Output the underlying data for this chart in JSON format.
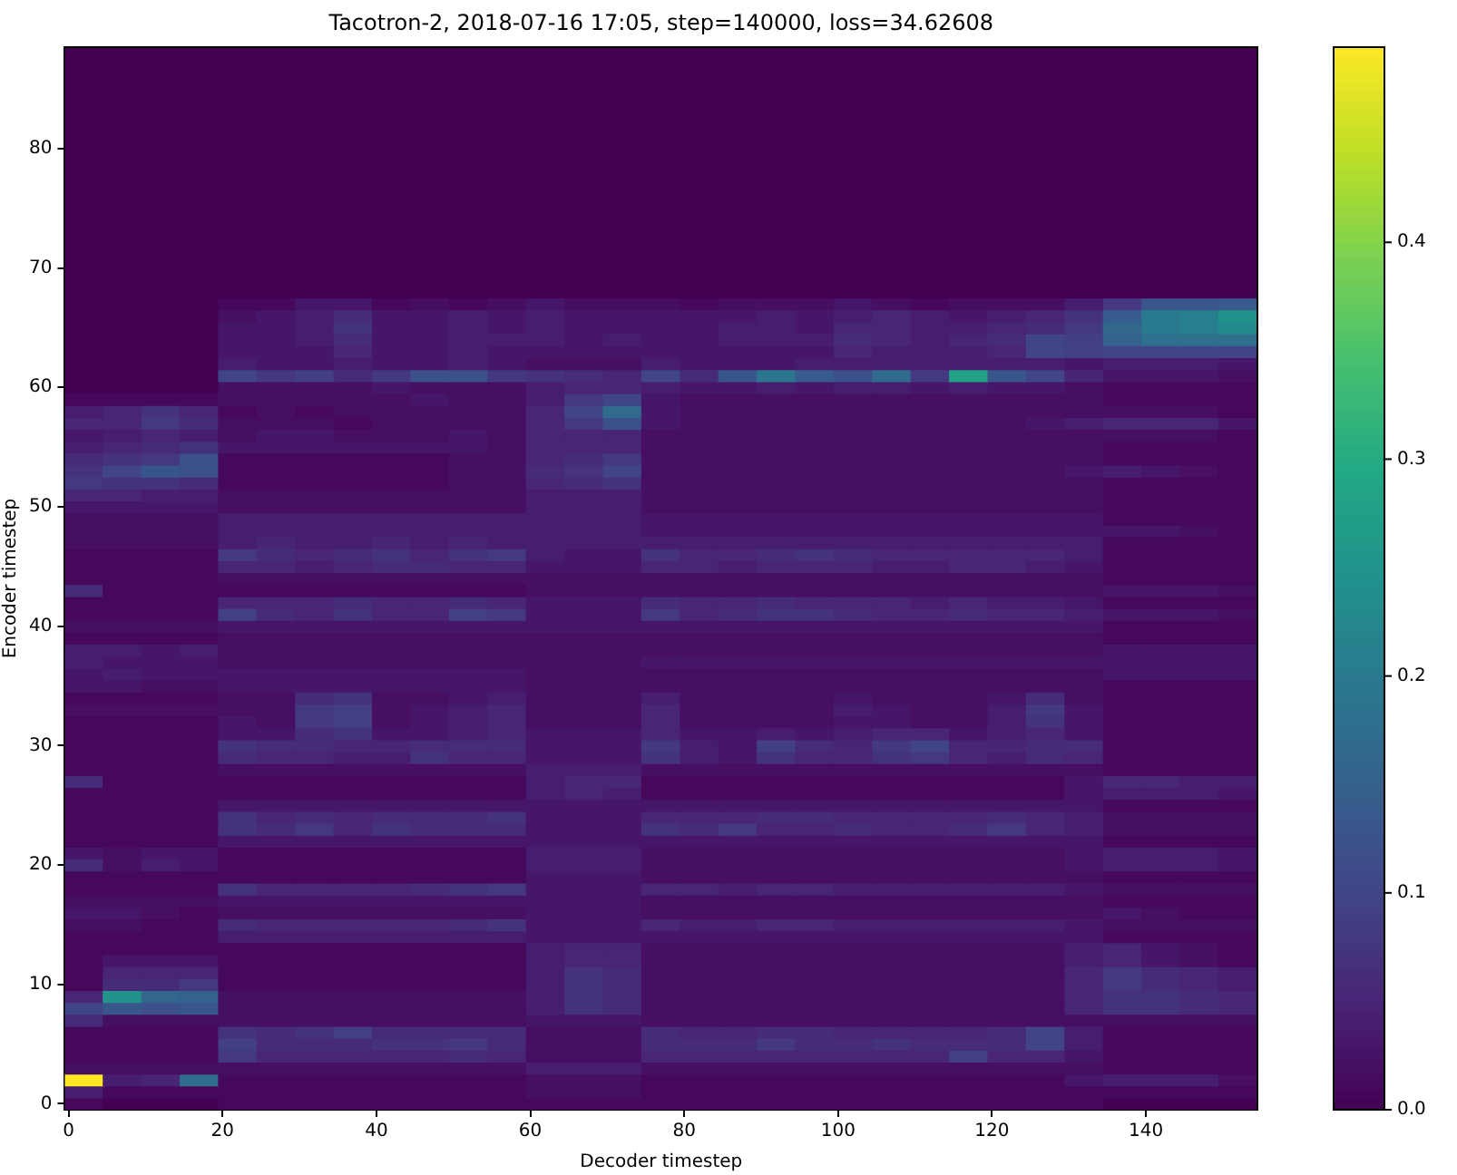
{
  "chart_data": {
    "type": "heatmap",
    "title": "Tacotron-2, 2018-07-16 17:05, step=140000, loss=34.62608",
    "xlabel": "Decoder timestep",
    "ylabel": "Encoder timestep",
    "x": [
      2,
      7,
      12,
      17,
      22,
      27,
      32,
      37,
      42,
      47,
      52,
      57,
      62,
      67,
      72,
      77,
      82,
      87,
      92,
      97,
      102,
      107,
      112,
      117,
      122,
      127,
      132,
      137,
      142,
      147,
      152
    ],
    "xlim": [
      -0.5,
      154.5
    ],
    "xticks": [
      0,
      20,
      40,
      60,
      80,
      100,
      120,
      140
    ],
    "y_categories": [
      null,
      null,
      null,
      null,
      null,
      null,
      null,
      null,
      "80",
      null,
      null,
      null,
      null,
      null,
      null,
      null,
      null,
      null,
      "70",
      null,
      null,
      null,
      null,
      null,
      null,
      null,
      null,
      null,
      "60",
      null,
      null,
      null,
      null,
      null,
      null,
      null,
      null,
      null,
      "50",
      null,
      null,
      null,
      null,
      null,
      null,
      null,
      null,
      null,
      "40",
      null,
      null,
      null,
      null,
      null,
      null,
      null,
      null,
      null,
      "30",
      null,
      null,
      null,
      null,
      null,
      null,
      null,
      null,
      null,
      "20",
      null,
      null,
      null,
      null,
      null,
      null,
      null,
      null,
      null,
      "10",
      null,
      null,
      null,
      null,
      null,
      null,
      null,
      null,
      null,
      "0"
    ],
    "clim": [
      0,
      0.49
    ],
    "cticks": [
      {
        "value": 0,
        "label": "0.0"
      },
      0.1,
      0.2,
      0.3,
      0.4
    ],
    "cells": [
      [
        0,
        0,
        0,
        0,
        0,
        0,
        0,
        0,
        0,
        0,
        0,
        0,
        0,
        0,
        0,
        0,
        0,
        0,
        0,
        0,
        0,
        0,
        0,
        0,
        0,
        0,
        0,
        0,
        0,
        0,
        0
      ],
      [
        0,
        0,
        0,
        0,
        0,
        0,
        0,
        0,
        0,
        0,
        0,
        0,
        0,
        0,
        0,
        0,
        0,
        0,
        0,
        0,
        0,
        0,
        0,
        0,
        0,
        0,
        0,
        0,
        0,
        0,
        0
      ],
      [
        0,
        0,
        0,
        0,
        0,
        0,
        0,
        0,
        0,
        0,
        0,
        0,
        0,
        0,
        0,
        0,
        0,
        0,
        0,
        0,
        0,
        0,
        0,
        0,
        0,
        0,
        0,
        0,
        0,
        0,
        0
      ],
      [
        0,
        0,
        0,
        0,
        0,
        0,
        0,
        0,
        0,
        0,
        0,
        0,
        0,
        0,
        0,
        0,
        0,
        0,
        0,
        0,
        0,
        0,
        0,
        0,
        0,
        0,
        0,
        0,
        0,
        0,
        0
      ],
      [
        0,
        0,
        0,
        0,
        0,
        0,
        0,
        0,
        0,
        0,
        0,
        0,
        0,
        0,
        0,
        0,
        0,
        0,
        0,
        0,
        0,
        0,
        0,
        0,
        0,
        0,
        0,
        0,
        0,
        0,
        0
      ],
      [
        0,
        0,
        0,
        0,
        0,
        0,
        0,
        0,
        0,
        0,
        0,
        0,
        0,
        0,
        0,
        0,
        0,
        0,
        0,
        0,
        0,
        0,
        0,
        0,
        0,
        0,
        0,
        0,
        0,
        0,
        0
      ],
      [
        0,
        0,
        0,
        0,
        0,
        0,
        0,
        0,
        0,
        0,
        0,
        0,
        0,
        0,
        0,
        0,
        0,
        0,
        0,
        0,
        0,
        0,
        0,
        0,
        0,
        0,
        0,
        0,
        0,
        0,
        0
      ],
      [
        0,
        0,
        0,
        0,
        0,
        0,
        0,
        0,
        0,
        0,
        0,
        0,
        0,
        0,
        0,
        0,
        0,
        0,
        0,
        0,
        0,
        0,
        0,
        0,
        0,
        0,
        0,
        0,
        0,
        0,
        0
      ],
      [
        0,
        0,
        0,
        0,
        0,
        0,
        0,
        0,
        0,
        0,
        0,
        0,
        0,
        0,
        0,
        0,
        0,
        0,
        0,
        0,
        0,
        0,
        0,
        0,
        0,
        0,
        0,
        0,
        0,
        0,
        0
      ],
      [
        0,
        0,
        0,
        0,
        0,
        0,
        0,
        0,
        0,
        0,
        0,
        0,
        0,
        0,
        0,
        0,
        0,
        0,
        0,
        0,
        0,
        0,
        0,
        0,
        0,
        0,
        0,
        0,
        0,
        0,
        0
      ],
      [
        0,
        0,
        0,
        0,
        0,
        0,
        0,
        0,
        0,
        0,
        0,
        0,
        0,
        0,
        0,
        0,
        0,
        0,
        0,
        0,
        0,
        0,
        0,
        0,
        0,
        0,
        0,
        0,
        0,
        0,
        0
      ],
      [
        0,
        0,
        0,
        0,
        0,
        0,
        0,
        0,
        0,
        0,
        0,
        0,
        0,
        0,
        0,
        0,
        0,
        0,
        0,
        0,
        0,
        0,
        0,
        0,
        0,
        0,
        0,
        0,
        0,
        0,
        0
      ],
      [
        0,
        0,
        0,
        0,
        0,
        0,
        0,
        0,
        0,
        0,
        0,
        0,
        0,
        0,
        0,
        0,
        0,
        0,
        0,
        0,
        0,
        0,
        0,
        0,
        0,
        0,
        0,
        0,
        0,
        0,
        0
      ],
      [
        0,
        0,
        0,
        0,
        0,
        0,
        0,
        0,
        0,
        0,
        0,
        0,
        0,
        0,
        0,
        0,
        0,
        0,
        0,
        0,
        0,
        0,
        0,
        0,
        0,
        0,
        0,
        0,
        0,
        0,
        0
      ],
      [
        0,
        0,
        0,
        0,
        0,
        0,
        0,
        0,
        0,
        0,
        0,
        0,
        0,
        0,
        0,
        0,
        0,
        0,
        0,
        0,
        0,
        0,
        0,
        0,
        0,
        0,
        0,
        0,
        0,
        0,
        0
      ],
      [
        0,
        0,
        0,
        0,
        0,
        0,
        0,
        0,
        0,
        0,
        0,
        0,
        0,
        0,
        0,
        0,
        0,
        0,
        0,
        0,
        0,
        0,
        0,
        0,
        0,
        0,
        0,
        0,
        0,
        0,
        0
      ],
      [
        0,
        0,
        0,
        0,
        0,
        0,
        0,
        0,
        0,
        0,
        0,
        0,
        0,
        0,
        0,
        0,
        0,
        0,
        0,
        0,
        0,
        0,
        0,
        0,
        0,
        0,
        0,
        0,
        0,
        0,
        0
      ],
      [
        0,
        0,
        0,
        0,
        0,
        0,
        0,
        0,
        0,
        0,
        0,
        0,
        0,
        0,
        0,
        0,
        0,
        0,
        0,
        0,
        0,
        0,
        0,
        0,
        0,
        0,
        0,
        0,
        0,
        0,
        0
      ],
      [
        0,
        0,
        0,
        0,
        0,
        0,
        0,
        0,
        0,
        0,
        0,
        0,
        0,
        0,
        0,
        0,
        0,
        0,
        0,
        0,
        0,
        0,
        0,
        0,
        0,
        0,
        0,
        0,
        0,
        0,
        0
      ],
      [
        0,
        0,
        0,
        0,
        0,
        0,
        0,
        0,
        0,
        0,
        0,
        0,
        0,
        0,
        0,
        0,
        0,
        0,
        0,
        0,
        0,
        0,
        0,
        0,
        0,
        0,
        0,
        0,
        0,
        0,
        0
      ],
      [
        0,
        0,
        0,
        0,
        0,
        0,
        0,
        0,
        0,
        0,
        0,
        0,
        0,
        0,
        0,
        0,
        0,
        0,
        0,
        0,
        0,
        0,
        0,
        0,
        0,
        0,
        0,
        0,
        0,
        0,
        0
      ],
      [
        0,
        0,
        0,
        0,
        0.01,
        0.01,
        0.03,
        0.03,
        0.01,
        0.02,
        0.01,
        0.02,
        0.03,
        0.02,
        0.02,
        0.02,
        0.01,
        0.02,
        0.02,
        0.02,
        0.03,
        0.02,
        0.01,
        0.02,
        0.02,
        0.02,
        0.04,
        0.08,
        0.13,
        0.13,
        0.14
      ],
      [
        0,
        0,
        0,
        0,
        0.02,
        0.03,
        0.04,
        0.06,
        0.03,
        0.03,
        0.04,
        0.03,
        0.04,
        0.03,
        0.03,
        0.03,
        0.03,
        0.03,
        0.04,
        0.03,
        0.04,
        0.05,
        0.04,
        0.03,
        0.04,
        0.05,
        0.07,
        0.14,
        0.2,
        0.21,
        0.25
      ],
      [
        0,
        0,
        0,
        0,
        0.03,
        0.03,
        0.04,
        0.07,
        0.03,
        0.03,
        0.04,
        0.03,
        0.04,
        0.03,
        0.03,
        0.03,
        0.03,
        0.04,
        0.04,
        0.03,
        0.05,
        0.05,
        0.04,
        0.04,
        0.05,
        0.06,
        0.08,
        0.16,
        0.2,
        0.21,
        0.23
      ],
      [
        0,
        0,
        0,
        0,
        0.03,
        0.03,
        0.04,
        0.06,
        0.03,
        0.03,
        0.04,
        0.04,
        0.04,
        0.03,
        0.04,
        0.03,
        0.03,
        0.04,
        0.04,
        0.04,
        0.06,
        0.05,
        0.04,
        0.05,
        0.06,
        0.1,
        0.09,
        0.15,
        0.18,
        0.18,
        0.18
      ],
      [
        0,
        0,
        0,
        0,
        0.03,
        0.03,
        0.03,
        0.05,
        0.03,
        0.03,
        0.04,
        0.03,
        0.03,
        0.03,
        0.03,
        0.03,
        0.03,
        0.03,
        0.03,
        0.03,
        0.05,
        0.04,
        0.04,
        0.04,
        0.05,
        0.1,
        0.09,
        0.1,
        0.1,
        0.1,
        0.1
      ],
      [
        0,
        0,
        0,
        0,
        0.04,
        0.03,
        0.03,
        0.04,
        0.03,
        0.03,
        0.04,
        0.03,
        0.02,
        0.02,
        0.02,
        0.04,
        0.03,
        0.03,
        0.03,
        0.04,
        0.04,
        0.04,
        0.04,
        0.04,
        0.04,
        0.04,
        0.03,
        0.04,
        0.04,
        0.04,
        0.03
      ],
      [
        0,
        0,
        0,
        0,
        0.1,
        0.08,
        0.09,
        0.06,
        0.08,
        0.12,
        0.12,
        0.08,
        0.07,
        0.06,
        0.05,
        0.1,
        0.06,
        0.13,
        0.19,
        0.14,
        0.12,
        0.17,
        0.08,
        0.28,
        0.13,
        0.1,
        0.05,
        0.03,
        0.03,
        0.03,
        0.02
      ],
      [
        0,
        0,
        0,
        0,
        0.02,
        0.02,
        0.02,
        0.02,
        0.03,
        0.02,
        0.02,
        0.02,
        0.04,
        0.05,
        0.05,
        0.04,
        0.03,
        0.03,
        0.04,
        0.03,
        0.04,
        0.04,
        0.03,
        0.04,
        0.03,
        0.03,
        0.02,
        0.01,
        0.01,
        0.01,
        0.01
      ],
      [
        0.01,
        0.01,
        0.01,
        0.01,
        0.02,
        0.02,
        0.02,
        0.02,
        0.02,
        0.03,
        0.02,
        0.02,
        0.04,
        0.08,
        0.1,
        0.03,
        0.02,
        0.02,
        0.02,
        0.02,
        0.02,
        0.02,
        0.02,
        0.02,
        0.02,
        0.02,
        0.02,
        0.01,
        0.01,
        0.01,
        0.01
      ],
      [
        0.04,
        0.05,
        0.07,
        0.05,
        0.01,
        0.02,
        0.01,
        0.02,
        0.02,
        0.02,
        0.02,
        0.02,
        0.05,
        0.1,
        0.17,
        0.03,
        0.02,
        0.02,
        0.02,
        0.02,
        0.02,
        0.02,
        0.02,
        0.02,
        0.02,
        0.02,
        0.02,
        0.02,
        0.02,
        0.02,
        0.01
      ],
      [
        0.05,
        0.05,
        0.08,
        0.06,
        0.02,
        0.02,
        0.02,
        0.01,
        0.02,
        0.02,
        0.02,
        0.02,
        0.05,
        0.08,
        0.12,
        0.03,
        0.02,
        0.02,
        0.02,
        0.02,
        0.02,
        0.02,
        0.02,
        0.02,
        0.02,
        0.03,
        0.04,
        0.05,
        0.05,
        0.05,
        0.03
      ],
      [
        0.03,
        0.04,
        0.05,
        0.04,
        0.02,
        0.03,
        0.03,
        0.02,
        0.02,
        0.02,
        0.03,
        0.02,
        0.05,
        0.05,
        0.05,
        0.02,
        0.02,
        0.02,
        0.02,
        0.02,
        0.02,
        0.02,
        0.02,
        0.02,
        0.02,
        0.02,
        0.02,
        0.02,
        0.02,
        0.02,
        0.01
      ],
      [
        0.04,
        0.05,
        0.06,
        0.07,
        0.03,
        0.03,
        0.03,
        0.03,
        0.03,
        0.03,
        0.03,
        0.02,
        0.05,
        0.05,
        0.05,
        0.02,
        0.02,
        0.02,
        0.02,
        0.02,
        0.02,
        0.02,
        0.02,
        0.02,
        0.02,
        0.02,
        0.02,
        0.01,
        0.01,
        0.01,
        0.01
      ],
      [
        0.06,
        0.07,
        0.08,
        0.12,
        0.01,
        0.01,
        0.01,
        0.01,
        0.01,
        0.01,
        0.02,
        0.02,
        0.05,
        0.06,
        0.08,
        0.02,
        0.02,
        0.02,
        0.02,
        0.02,
        0.02,
        0.02,
        0.02,
        0.02,
        0.02,
        0.02,
        0.02,
        0.01,
        0.01,
        0.01,
        0.01
      ],
      [
        0.07,
        0.1,
        0.13,
        0.12,
        0.01,
        0.01,
        0.01,
        0.01,
        0.01,
        0.01,
        0.02,
        0.02,
        0.06,
        0.07,
        0.1,
        0.02,
        0.02,
        0.02,
        0.02,
        0.02,
        0.02,
        0.02,
        0.02,
        0.02,
        0.02,
        0.02,
        0.03,
        0.04,
        0.03,
        0.02,
        0.01
      ],
      [
        0.08,
        0.07,
        0.07,
        0.06,
        0.01,
        0.01,
        0.01,
        0.01,
        0.01,
        0.01,
        0.02,
        0.02,
        0.05,
        0.06,
        0.07,
        0.02,
        0.02,
        0.02,
        0.02,
        0.02,
        0.02,
        0.02,
        0.02,
        0.02,
        0.02,
        0.02,
        0.02,
        0.01,
        0.01,
        0.01,
        0.01
      ],
      [
        0.05,
        0.05,
        0.04,
        0.04,
        0.02,
        0.02,
        0.02,
        0.02,
        0.02,
        0.02,
        0.02,
        0.02,
        0.04,
        0.04,
        0.04,
        0.02,
        0.02,
        0.02,
        0.02,
        0.02,
        0.02,
        0.02,
        0.02,
        0.02,
        0.02,
        0.02,
        0.02,
        0.01,
        0.01,
        0.01,
        0.01
      ],
      [
        0.03,
        0.03,
        0.03,
        0.03,
        0.02,
        0.02,
        0.02,
        0.02,
        0.02,
        0.02,
        0.02,
        0.02,
        0.04,
        0.04,
        0.04,
        0.02,
        0.02,
        0.02,
        0.02,
        0.02,
        0.02,
        0.02,
        0.02,
        0.02,
        0.02,
        0.02,
        0.02,
        0.01,
        0.01,
        0.01,
        0.01
      ],
      [
        0.02,
        0.02,
        0.02,
        0.02,
        0.04,
        0.04,
        0.04,
        0.04,
        0.04,
        0.04,
        0.04,
        0.04,
        0.04,
        0.04,
        0.04,
        0.03,
        0.03,
        0.03,
        0.03,
        0.03,
        0.03,
        0.03,
        0.03,
        0.03,
        0.03,
        0.03,
        0.03,
        0.01,
        0.01,
        0.01,
        0.01
      ],
      [
        0.02,
        0.02,
        0.02,
        0.02,
        0.04,
        0.04,
        0.04,
        0.04,
        0.04,
        0.04,
        0.04,
        0.04,
        0.04,
        0.04,
        0.04,
        0.03,
        0.03,
        0.03,
        0.03,
        0.03,
        0.03,
        0.03,
        0.03,
        0.03,
        0.03,
        0.03,
        0.03,
        0.03,
        0.03,
        0.02,
        0.01
      ],
      [
        0.02,
        0.02,
        0.02,
        0.02,
        0.04,
        0.05,
        0.04,
        0.04,
        0.05,
        0.04,
        0.05,
        0.04,
        0.04,
        0.04,
        0.04,
        0.04,
        0.04,
        0.04,
        0.04,
        0.04,
        0.04,
        0.04,
        0.04,
        0.04,
        0.04,
        0.04,
        0.04,
        0.01,
        0.01,
        0.01,
        0.01
      ],
      [
        0.01,
        0.01,
        0.01,
        0.01,
        0.08,
        0.06,
        0.05,
        0.06,
        0.07,
        0.05,
        0.07,
        0.08,
        0.04,
        0.03,
        0.03,
        0.07,
        0.05,
        0.05,
        0.06,
        0.07,
        0.06,
        0.05,
        0.05,
        0.05,
        0.05,
        0.05,
        0.04,
        0.01,
        0.01,
        0.01,
        0.01
      ],
      [
        0.01,
        0.01,
        0.01,
        0.01,
        0.05,
        0.05,
        0.04,
        0.05,
        0.06,
        0.06,
        0.05,
        0.05,
        0.03,
        0.03,
        0.03,
        0.05,
        0.05,
        0.04,
        0.05,
        0.05,
        0.05,
        0.04,
        0.04,
        0.05,
        0.05,
        0.04,
        0.03,
        0.01,
        0.01,
        0.01,
        0.01
      ],
      [
        0.01,
        0.01,
        0.01,
        0.01,
        0.02,
        0.02,
        0.02,
        0.02,
        0.02,
        0.02,
        0.02,
        0.02,
        0.02,
        0.02,
        0.02,
        0.02,
        0.02,
        0.02,
        0.02,
        0.02,
        0.02,
        0.02,
        0.02,
        0.02,
        0.02,
        0.02,
        0.02,
        0.01,
        0.01,
        0.01,
        0.01
      ],
      [
        0.06,
        0.01,
        0.01,
        0.01,
        0.01,
        0.01,
        0.01,
        0.01,
        0.01,
        0.01,
        0.01,
        0.01,
        0.02,
        0.02,
        0.02,
        0.02,
        0.02,
        0.02,
        0.02,
        0.02,
        0.02,
        0.02,
        0.02,
        0.02,
        0.02,
        0.02,
        0.02,
        0.03,
        0.03,
        0.03,
        0.02
      ],
      [
        0.01,
        0.01,
        0.01,
        0.01,
        0.05,
        0.05,
        0.05,
        0.06,
        0.05,
        0.05,
        0.06,
        0.05,
        0.03,
        0.03,
        0.03,
        0.06,
        0.05,
        0.05,
        0.06,
        0.05,
        0.05,
        0.05,
        0.04,
        0.05,
        0.04,
        0.04,
        0.03,
        0.01,
        0.01,
        0.01,
        0.01
      ],
      [
        0.01,
        0.01,
        0.01,
        0.01,
        0.09,
        0.06,
        0.05,
        0.07,
        0.05,
        0.05,
        0.09,
        0.08,
        0.03,
        0.03,
        0.03,
        0.08,
        0.05,
        0.06,
        0.07,
        0.07,
        0.06,
        0.05,
        0.05,
        0.06,
        0.05,
        0.05,
        0.04,
        0.03,
        0.03,
        0.03,
        0.02
      ],
      [
        0.02,
        0.02,
        0.02,
        0.02,
        0.03,
        0.03,
        0.03,
        0.03,
        0.03,
        0.03,
        0.03,
        0.03,
        0.03,
        0.03,
        0.03,
        0.03,
        0.03,
        0.03,
        0.03,
        0.03,
        0.03,
        0.03,
        0.03,
        0.03,
        0.03,
        0.03,
        0.03,
        0.01,
        0.01,
        0.01,
        0.01
      ],
      [
        0.01,
        0.01,
        0.01,
        0.01,
        0.02,
        0.02,
        0.02,
        0.02,
        0.02,
        0.02,
        0.02,
        0.02,
        0.02,
        0.02,
        0.02,
        0.02,
        0.02,
        0.02,
        0.02,
        0.02,
        0.02,
        0.02,
        0.02,
        0.02,
        0.02,
        0.02,
        0.02,
        0.01,
        0.01,
        0.01,
        0.01
      ],
      [
        0.04,
        0.04,
        0.03,
        0.04,
        0.02,
        0.02,
        0.02,
        0.02,
        0.02,
        0.02,
        0.02,
        0.02,
        0.02,
        0.02,
        0.02,
        0.02,
        0.02,
        0.02,
        0.02,
        0.02,
        0.02,
        0.02,
        0.02,
        0.02,
        0.02,
        0.02,
        0.02,
        0.03,
        0.03,
        0.03,
        0.03
      ],
      [
        0.04,
        0.03,
        0.03,
        0.03,
        0.02,
        0.02,
        0.02,
        0.02,
        0.02,
        0.02,
        0.02,
        0.02,
        0.02,
        0.02,
        0.02,
        0.03,
        0.03,
        0.03,
        0.03,
        0.03,
        0.03,
        0.03,
        0.03,
        0.03,
        0.03,
        0.03,
        0.03,
        0.03,
        0.03,
        0.03,
        0.03
      ],
      [
        0.03,
        0.04,
        0.03,
        0.03,
        0.03,
        0.03,
        0.03,
        0.03,
        0.03,
        0.03,
        0.03,
        0.03,
        0.02,
        0.02,
        0.02,
        0.02,
        0.02,
        0.02,
        0.02,
        0.02,
        0.02,
        0.02,
        0.02,
        0.02,
        0.02,
        0.02,
        0.02,
        0.03,
        0.03,
        0.03,
        0.03
      ],
      [
        0.03,
        0.03,
        0.02,
        0.02,
        0.03,
        0.03,
        0.03,
        0.03,
        0.03,
        0.03,
        0.03,
        0.03,
        0.02,
        0.02,
        0.02,
        0.02,
        0.02,
        0.02,
        0.02,
        0.02,
        0.02,
        0.02,
        0.02,
        0.02,
        0.02,
        0.02,
        0.02,
        0.01,
        0.01,
        0.01,
        0.01
      ],
      [
        0.01,
        0.01,
        0.01,
        0.01,
        0.02,
        0.02,
        0.06,
        0.07,
        0.02,
        0.02,
        0.03,
        0.04,
        0.02,
        0.02,
        0.02,
        0.04,
        0.02,
        0.02,
        0.02,
        0.02,
        0.03,
        0.02,
        0.02,
        0.02,
        0.03,
        0.06,
        0.02,
        0.01,
        0.01,
        0.01,
        0.01
      ],
      [
        0.02,
        0.02,
        0.02,
        0.02,
        0.02,
        0.02,
        0.08,
        0.09,
        0.02,
        0.03,
        0.04,
        0.05,
        0.02,
        0.02,
        0.02,
        0.05,
        0.02,
        0.02,
        0.02,
        0.02,
        0.04,
        0.03,
        0.02,
        0.02,
        0.04,
        0.08,
        0.03,
        0.01,
        0.01,
        0.01,
        0.01
      ],
      [
        0.01,
        0.01,
        0.01,
        0.01,
        0.03,
        0.02,
        0.08,
        0.09,
        0.02,
        0.03,
        0.04,
        0.05,
        0.02,
        0.02,
        0.02,
        0.05,
        0.02,
        0.02,
        0.02,
        0.02,
        0.03,
        0.03,
        0.02,
        0.02,
        0.04,
        0.07,
        0.03,
        0.01,
        0.01,
        0.01,
        0.01
      ],
      [
        0.01,
        0.01,
        0.01,
        0.01,
        0.03,
        0.03,
        0.06,
        0.07,
        0.03,
        0.03,
        0.04,
        0.05,
        0.03,
        0.03,
        0.03,
        0.05,
        0.03,
        0.03,
        0.04,
        0.03,
        0.04,
        0.05,
        0.05,
        0.03,
        0.04,
        0.05,
        0.03,
        0.01,
        0.01,
        0.01,
        0.01
      ],
      [
        0.01,
        0.01,
        0.01,
        0.01,
        0.07,
        0.06,
        0.06,
        0.05,
        0.05,
        0.06,
        0.06,
        0.06,
        0.03,
        0.03,
        0.03,
        0.08,
        0.04,
        0.03,
        0.09,
        0.06,
        0.05,
        0.08,
        0.1,
        0.05,
        0.05,
        0.06,
        0.06,
        0.01,
        0.01,
        0.01,
        0.01
      ],
      [
        0.01,
        0.01,
        0.01,
        0.01,
        0.06,
        0.05,
        0.05,
        0.04,
        0.04,
        0.07,
        0.05,
        0.05,
        0.03,
        0.03,
        0.03,
        0.07,
        0.04,
        0.03,
        0.07,
        0.05,
        0.05,
        0.07,
        0.08,
        0.05,
        0.04,
        0.06,
        0.05,
        0.01,
        0.01,
        0.01,
        0.01
      ],
      [
        0.01,
        0.01,
        0.01,
        0.01,
        0.02,
        0.02,
        0.02,
        0.02,
        0.02,
        0.02,
        0.02,
        0.02,
        0.04,
        0.04,
        0.04,
        0.02,
        0.02,
        0.02,
        0.02,
        0.02,
        0.02,
        0.02,
        0.02,
        0.02,
        0.02,
        0.02,
        0.02,
        0.01,
        0.01,
        0.01,
        0.01
      ],
      [
        0.06,
        0.01,
        0.01,
        0.01,
        0.01,
        0.01,
        0.01,
        0.01,
        0.01,
        0.01,
        0.01,
        0.01,
        0.04,
        0.05,
        0.05,
        0.01,
        0.01,
        0.01,
        0.01,
        0.01,
        0.01,
        0.01,
        0.01,
        0.01,
        0.01,
        0.01,
        0.03,
        0.05,
        0.05,
        0.04,
        0.04
      ],
      [
        0.01,
        0.01,
        0.01,
        0.01,
        0.01,
        0.01,
        0.01,
        0.01,
        0.01,
        0.01,
        0.01,
        0.01,
        0.04,
        0.05,
        0.04,
        0.01,
        0.01,
        0.01,
        0.01,
        0.01,
        0.01,
        0.01,
        0.01,
        0.01,
        0.01,
        0.01,
        0.03,
        0.04,
        0.04,
        0.04,
        0.03
      ],
      [
        0.01,
        0.01,
        0.01,
        0.01,
        0.03,
        0.03,
        0.03,
        0.03,
        0.03,
        0.03,
        0.03,
        0.03,
        0.03,
        0.03,
        0.03,
        0.03,
        0.03,
        0.03,
        0.03,
        0.03,
        0.03,
        0.03,
        0.03,
        0.03,
        0.03,
        0.03,
        0.03,
        0.01,
        0.01,
        0.01,
        0.01
      ],
      [
        0.01,
        0.01,
        0.01,
        0.01,
        0.07,
        0.05,
        0.06,
        0.05,
        0.06,
        0.06,
        0.06,
        0.07,
        0.03,
        0.03,
        0.03,
        0.05,
        0.05,
        0.05,
        0.06,
        0.06,
        0.05,
        0.05,
        0.05,
        0.05,
        0.06,
        0.05,
        0.04,
        0.02,
        0.02,
        0.02,
        0.02
      ],
      [
        0.01,
        0.01,
        0.01,
        0.01,
        0.07,
        0.06,
        0.08,
        0.05,
        0.07,
        0.06,
        0.06,
        0.06,
        0.03,
        0.03,
        0.03,
        0.07,
        0.06,
        0.08,
        0.05,
        0.05,
        0.06,
        0.05,
        0.05,
        0.06,
        0.08,
        0.05,
        0.04,
        0.02,
        0.02,
        0.02,
        0.02
      ],
      [
        0.01,
        0.01,
        0.01,
        0.01,
        0.03,
        0.03,
        0.03,
        0.03,
        0.03,
        0.03,
        0.03,
        0.03,
        0.03,
        0.03,
        0.03,
        0.03,
        0.03,
        0.03,
        0.03,
        0.03,
        0.03,
        0.03,
        0.03,
        0.03,
        0.03,
        0.03,
        0.03,
        0.01,
        0.01,
        0.01,
        0.01
      ],
      [
        0.03,
        0.02,
        0.03,
        0.03,
        0.01,
        0.01,
        0.01,
        0.01,
        0.01,
        0.01,
        0.01,
        0.01,
        0.04,
        0.04,
        0.04,
        0.02,
        0.02,
        0.02,
        0.02,
        0.02,
        0.02,
        0.02,
        0.02,
        0.02,
        0.02,
        0.02,
        0.03,
        0.04,
        0.04,
        0.04,
        0.03
      ],
      [
        0.06,
        0.02,
        0.04,
        0.03,
        0.01,
        0.01,
        0.01,
        0.01,
        0.01,
        0.01,
        0.01,
        0.01,
        0.04,
        0.04,
        0.04,
        0.02,
        0.02,
        0.02,
        0.02,
        0.02,
        0.02,
        0.02,
        0.02,
        0.02,
        0.02,
        0.02,
        0.03,
        0.04,
        0.04,
        0.04,
        0.03
      ],
      [
        0.01,
        0.01,
        0.01,
        0.01,
        0.01,
        0.01,
        0.01,
        0.01,
        0.01,
        0.01,
        0.01,
        0.01,
        0.03,
        0.03,
        0.03,
        0.02,
        0.02,
        0.02,
        0.02,
        0.02,
        0.02,
        0.02,
        0.02,
        0.02,
        0.02,
        0.02,
        0.02,
        0.01,
        0.01,
        0.01,
        0.01
      ],
      [
        0.01,
        0.01,
        0.01,
        0.01,
        0.07,
        0.05,
        0.05,
        0.05,
        0.05,
        0.06,
        0.07,
        0.08,
        0.03,
        0.03,
        0.03,
        0.05,
        0.05,
        0.04,
        0.05,
        0.05,
        0.04,
        0.04,
        0.04,
        0.04,
        0.04,
        0.04,
        0.03,
        0.02,
        0.02,
        0.02,
        0.02
      ],
      [
        0.02,
        0.02,
        0.02,
        0.02,
        0.03,
        0.03,
        0.03,
        0.03,
        0.03,
        0.03,
        0.03,
        0.03,
        0.03,
        0.03,
        0.03,
        0.02,
        0.02,
        0.02,
        0.02,
        0.02,
        0.02,
        0.02,
        0.02,
        0.02,
        0.02,
        0.02,
        0.02,
        0.01,
        0.01,
        0.01,
        0.01
      ],
      [
        0.03,
        0.03,
        0.02,
        0.01,
        0.02,
        0.02,
        0.02,
        0.02,
        0.02,
        0.02,
        0.02,
        0.02,
        0.03,
        0.03,
        0.03,
        0.02,
        0.02,
        0.02,
        0.02,
        0.02,
        0.02,
        0.02,
        0.02,
        0.02,
        0.02,
        0.02,
        0.02,
        0.03,
        0.02,
        0.01,
        0.01
      ],
      [
        0.02,
        0.02,
        0.01,
        0.01,
        0.06,
        0.05,
        0.05,
        0.05,
        0.05,
        0.05,
        0.06,
        0.07,
        0.03,
        0.03,
        0.03,
        0.05,
        0.04,
        0.04,
        0.05,
        0.05,
        0.04,
        0.04,
        0.04,
        0.04,
        0.04,
        0.04,
        0.03,
        0.02,
        0.02,
        0.02,
        0.02
      ],
      [
        0.01,
        0.01,
        0.01,
        0.01,
        0.04,
        0.04,
        0.04,
        0.04,
        0.04,
        0.04,
        0.04,
        0.04,
        0.03,
        0.03,
        0.03,
        0.03,
        0.03,
        0.03,
        0.03,
        0.03,
        0.03,
        0.03,
        0.03,
        0.03,
        0.03,
        0.03,
        0.03,
        0.01,
        0.01,
        0.01,
        0.01
      ],
      [
        0.01,
        0.01,
        0.01,
        0.01,
        0.01,
        0.01,
        0.01,
        0.01,
        0.01,
        0.01,
        0.01,
        0.01,
        0.04,
        0.05,
        0.05,
        0.02,
        0.02,
        0.02,
        0.02,
        0.02,
        0.02,
        0.02,
        0.02,
        0.02,
        0.02,
        0.02,
        0.04,
        0.05,
        0.03,
        0.02,
        0.01
      ],
      [
        0.01,
        0.03,
        0.03,
        0.03,
        0.01,
        0.01,
        0.01,
        0.01,
        0.01,
        0.01,
        0.01,
        0.01,
        0.04,
        0.05,
        0.05,
        0.02,
        0.02,
        0.02,
        0.02,
        0.02,
        0.02,
        0.02,
        0.02,
        0.02,
        0.02,
        0.02,
        0.04,
        0.05,
        0.03,
        0.02,
        0.01
      ],
      [
        0.01,
        0.05,
        0.05,
        0.05,
        0.01,
        0.01,
        0.01,
        0.01,
        0.01,
        0.01,
        0.01,
        0.01,
        0.04,
        0.07,
        0.06,
        0.02,
        0.02,
        0.02,
        0.02,
        0.02,
        0.02,
        0.02,
        0.02,
        0.02,
        0.02,
        0.02,
        0.05,
        0.08,
        0.06,
        0.05,
        0.04
      ],
      [
        0.01,
        0.06,
        0.06,
        0.08,
        0.01,
        0.01,
        0.01,
        0.01,
        0.01,
        0.01,
        0.01,
        0.01,
        0.04,
        0.07,
        0.06,
        0.02,
        0.02,
        0.02,
        0.02,
        0.02,
        0.02,
        0.02,
        0.02,
        0.02,
        0.02,
        0.02,
        0.05,
        0.08,
        0.06,
        0.05,
        0.04
      ],
      [
        0.05,
        0.25,
        0.16,
        0.15,
        0.02,
        0.02,
        0.02,
        0.02,
        0.02,
        0.02,
        0.02,
        0.02,
        0.04,
        0.07,
        0.06,
        0.02,
        0.02,
        0.02,
        0.02,
        0.02,
        0.02,
        0.02,
        0.02,
        0.02,
        0.02,
        0.02,
        0.05,
        0.07,
        0.07,
        0.06,
        0.05
      ],
      [
        0.1,
        0.13,
        0.12,
        0.13,
        0.02,
        0.02,
        0.02,
        0.02,
        0.02,
        0.02,
        0.02,
        0.02,
        0.04,
        0.07,
        0.06,
        0.02,
        0.02,
        0.02,
        0.02,
        0.02,
        0.02,
        0.02,
        0.02,
        0.02,
        0.02,
        0.02,
        0.05,
        0.07,
        0.07,
        0.06,
        0.05
      ],
      [
        0.06,
        0.02,
        0.02,
        0.02,
        0.02,
        0.02,
        0.02,
        0.02,
        0.02,
        0.02,
        0.02,
        0.02,
        0.03,
        0.03,
        0.03,
        0.02,
        0.02,
        0.02,
        0.02,
        0.02,
        0.02,
        0.02,
        0.02,
        0.02,
        0.02,
        0.02,
        0.02,
        0.02,
        0.02,
        0.02,
        0.02
      ],
      [
        0.01,
        0.01,
        0.01,
        0.01,
        0.07,
        0.06,
        0.07,
        0.09,
        0.06,
        0.06,
        0.06,
        0.06,
        0.02,
        0.02,
        0.02,
        0.06,
        0.05,
        0.05,
        0.06,
        0.06,
        0.05,
        0.05,
        0.05,
        0.05,
        0.06,
        0.1,
        0.04,
        0.01,
        0.01,
        0.01,
        0.01
      ],
      [
        0.01,
        0.01,
        0.01,
        0.01,
        0.09,
        0.06,
        0.06,
        0.06,
        0.07,
        0.07,
        0.08,
        0.06,
        0.02,
        0.02,
        0.02,
        0.06,
        0.06,
        0.06,
        0.08,
        0.06,
        0.06,
        0.07,
        0.06,
        0.06,
        0.06,
        0.1,
        0.04,
        0.01,
        0.01,
        0.01,
        0.01
      ],
      [
        0.01,
        0.01,
        0.01,
        0.01,
        0.08,
        0.05,
        0.05,
        0.05,
        0.05,
        0.05,
        0.06,
        0.05,
        0.02,
        0.02,
        0.02,
        0.05,
        0.05,
        0.05,
        0.05,
        0.05,
        0.05,
        0.05,
        0.05,
        0.09,
        0.05,
        0.05,
        0.03,
        0.01,
        0.01,
        0.01,
        0.01
      ],
      [
        0.02,
        0.02,
        0.02,
        0.02,
        0.02,
        0.02,
        0.02,
        0.02,
        0.02,
        0.02,
        0.02,
        0.02,
        0.04,
        0.04,
        0.04,
        0.02,
        0.02,
        0.02,
        0.02,
        0.02,
        0.02,
        0.02,
        0.02,
        0.02,
        0.02,
        0.02,
        0.02,
        0.01,
        0.01,
        0.01,
        0.01
      ],
      [
        0.49,
        0.04,
        0.05,
        0.17,
        0.01,
        0.01,
        0.01,
        0.01,
        0.01,
        0.01,
        0.01,
        0.01,
        0.02,
        0.02,
        0.02,
        0.01,
        0.01,
        0.01,
        0.01,
        0.01,
        0.01,
        0.01,
        0.01,
        0.01,
        0.01,
        0.01,
        0.03,
        0.04,
        0.04,
        0.04,
        0.02
      ],
      [
        0.04,
        0.01,
        0.01,
        0.01,
        0.01,
        0.01,
        0.01,
        0.01,
        0.01,
        0.01,
        0.01,
        0.01,
        0.02,
        0.02,
        0.02,
        0.01,
        0.01,
        0.01,
        0.01,
        0.01,
        0.01,
        0.01,
        0.01,
        0.01,
        0.01,
        0.01,
        0.01,
        0.01,
        0.01,
        0.01,
        0.01
      ],
      [
        0.01,
        0,
        0,
        0,
        0.01,
        0.01,
        0.01,
        0.01,
        0.01,
        0.01,
        0.01,
        0.01,
        0.01,
        0.01,
        0.01,
        0.01,
        0.01,
        0.01,
        0.01,
        0.01,
        0.01,
        0.01,
        0.01,
        0.01,
        0.01,
        0.01,
        0.01,
        0,
        0,
        0,
        0
      ]
    ]
  }
}
